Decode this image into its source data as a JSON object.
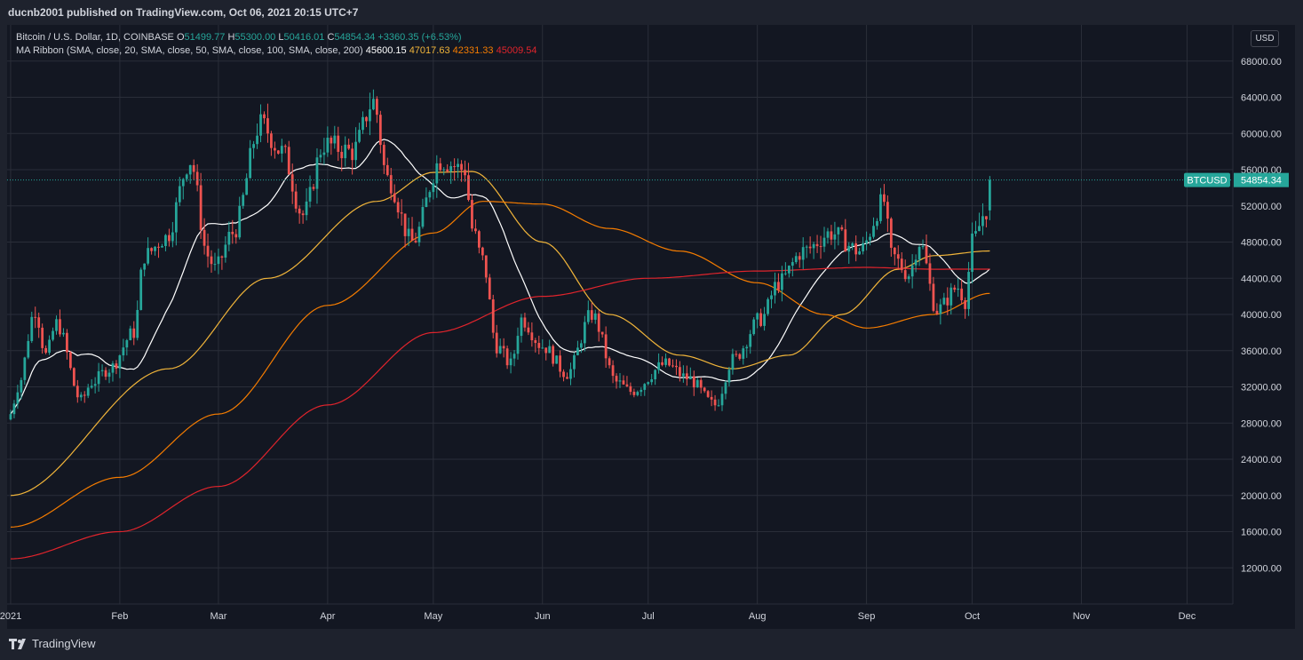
{
  "header": {
    "publisher": "ducnb2001 published on TradingView.com, Oct 06, 2021 20:15 UTC+7"
  },
  "legend": {
    "symbol": "Bitcoin / U.S. Dollar, 1D, COINBASE",
    "o_label": "O",
    "o_value": "51499.77",
    "h_label": "H",
    "h_value": "55300.00",
    "l_label": "L",
    "l_value": "50416.01",
    "c_label": "C",
    "c_value": "54854.34",
    "change": "+3360.35 (+6.53%)",
    "ma_label": "MA Ribbon (SMA, close, 20, SMA, close, 50, SMA, close, 100, SMA, close, 200)",
    "ma20": "45600.15",
    "ma50": "47017.63",
    "ma100": "42331.33",
    "ma200": "45009.54"
  },
  "currency": "USD",
  "price_tag": {
    "symbol": "BTCUSD",
    "value": "54854.34"
  },
  "footer": {
    "brand": "TradingView"
  },
  "colors": {
    "up": "#26a69a",
    "down": "#ef5350",
    "ma20": "#ffffff",
    "ma50": "#f0b43a",
    "ma100": "#f57c00",
    "ma200": "#e0242c",
    "grid": "#2a2e39",
    "background": "#131722"
  },
  "chart_data": {
    "type": "candlestick",
    "title": "Bitcoin / U.S. Dollar, 1D, COINBASE",
    "y_ticks": [
      12000,
      16000,
      20000,
      24000,
      28000,
      32000,
      36000,
      40000,
      44000,
      48000,
      52000,
      56000,
      60000,
      64000,
      68000
    ],
    "y_tick_labels": [
      "12000.00",
      "16000.00",
      "20000.00",
      "24000.00",
      "28000.00",
      "32000.00",
      "36000.00",
      "40000.00",
      "44000.00",
      "48000.00",
      "52000.00",
      "56000.00",
      "60000.00",
      "64000.00",
      "68000.00"
    ],
    "ylim": [
      8000,
      72000
    ],
    "x_ticks": [
      {
        "label": "2021",
        "date": "2021-01-01"
      },
      {
        "label": "Feb",
        "date": "2021-02-01"
      },
      {
        "label": "Mar",
        "date": "2021-03-01"
      },
      {
        "label": "Apr",
        "date": "2021-04-01"
      },
      {
        "label": "May",
        "date": "2021-05-01"
      },
      {
        "label": "Jun",
        "date": "2021-06-01"
      },
      {
        "label": "Jul",
        "date": "2021-07-01"
      },
      {
        "label": "Aug",
        "date": "2021-08-01"
      },
      {
        "label": "Sep",
        "date": "2021-09-01"
      },
      {
        "label": "Oct",
        "date": "2021-10-01"
      },
      {
        "label": "Nov",
        "date": "2021-11-01"
      },
      {
        "label": "Dec",
        "date": "2021-12-01"
      }
    ],
    "xlim": [
      "2020-12-31",
      "2021-12-14"
    ],
    "last_price": 54854.34,
    "close_path": [
      [
        "2021-01-01",
        29000
      ],
      [
        "2021-01-03",
        32000
      ],
      [
        "2021-01-08",
        40500
      ],
      [
        "2021-01-11",
        35500
      ],
      [
        "2021-01-14",
        39000
      ],
      [
        "2021-01-21",
        30500
      ],
      [
        "2021-01-24",
        32500
      ],
      [
        "2021-01-29",
        34000
      ],
      [
        "2021-02-05",
        38000
      ],
      [
        "2021-02-08",
        46500
      ],
      [
        "2021-02-14",
        48500
      ],
      [
        "2021-02-21",
        57000
      ],
      [
        "2021-02-26",
        46500
      ],
      [
        "2021-02-28",
        45000
      ],
      [
        "2021-03-05",
        49000
      ],
      [
        "2021-03-13",
        61000
      ],
      [
        "2021-03-19",
        58000
      ],
      [
        "2021-03-25",
        51000
      ],
      [
        "2021-03-31",
        58800
      ],
      [
        "2021-04-08",
        58000
      ],
      [
        "2021-04-14",
        63500
      ],
      [
        "2021-04-18",
        55000
      ],
      [
        "2021-04-25",
        48000
      ],
      [
        "2021-05-03",
        57000
      ],
      [
        "2021-05-10",
        56000
      ],
      [
        "2021-05-12",
        49500
      ],
      [
        "2021-05-15",
        46000
      ],
      [
        "2021-05-19",
        36500
      ],
      [
        "2021-05-23",
        34500
      ],
      [
        "2021-05-26",
        39500
      ],
      [
        "2021-06-01",
        36500
      ],
      [
        "2021-06-08",
        33500
      ],
      [
        "2021-06-15",
        40000
      ],
      [
        "2021-06-22",
        32500
      ],
      [
        "2021-06-26",
        31500
      ],
      [
        "2021-07-06",
        34500
      ],
      [
        "2021-07-12",
        33000
      ],
      [
        "2021-07-20",
        30000
      ],
      [
        "2021-07-25",
        35000
      ],
      [
        "2021-08-02",
        39500
      ],
      [
        "2021-08-07",
        43500
      ],
      [
        "2021-08-14",
        47000
      ],
      [
        "2021-08-22",
        49000
      ],
      [
        "2021-08-30",
        47000
      ],
      [
        "2021-09-06",
        52500
      ],
      [
        "2021-09-08",
        46500
      ],
      [
        "2021-09-13",
        44500
      ],
      [
        "2021-09-16",
        48000
      ],
      [
        "2021-09-21",
        40500
      ],
      [
        "2021-09-27",
        43000
      ],
      [
        "2021-09-29",
        41500
      ],
      [
        "2021-10-01",
        48000
      ],
      [
        "2021-10-05",
        51500
      ],
      [
        "2021-10-06",
        54854
      ]
    ],
    "series": [
      {
        "name": "MA 20",
        "period": 20,
        "last": 45600.15
      },
      {
        "name": "MA 50",
        "period": 50,
        "last": 47017.63
      },
      {
        "name": "MA 100",
        "period": 100,
        "last": 42331.33
      },
      {
        "name": "MA 200",
        "period": 200,
        "last": 45009.54
      }
    ],
    "ma_anchors": {
      "ma50": [
        [
          "2021-01-01",
          20000
        ],
        [
          "2021-02-15",
          34000
        ],
        [
          "2021-03-15",
          44000
        ],
        [
          "2021-04-15",
          52500
        ],
        [
          "2021-05-01",
          55700
        ],
        [
          "2021-05-12",
          55800
        ],
        [
          "2021-06-01",
          48000
        ],
        [
          "2021-06-20",
          40000
        ],
        [
          "2021-07-10",
          35500
        ],
        [
          "2021-07-25",
          34000
        ],
        [
          "2021-08-10",
          35500
        ],
        [
          "2021-08-25",
          40000
        ],
        [
          "2021-09-10",
          45000
        ],
        [
          "2021-09-20",
          46500
        ],
        [
          "2021-10-06",
          47017
        ]
      ],
      "ma100": [
        [
          "2021-01-01",
          16500
        ],
        [
          "2021-02-01",
          22000
        ],
        [
          "2021-03-01",
          29000
        ],
        [
          "2021-04-01",
          41000
        ],
        [
          "2021-05-01",
          49000
        ],
        [
          "2021-05-15",
          52500
        ],
        [
          "2021-06-01",
          52200
        ],
        [
          "2021-06-20",
          49500
        ],
        [
          "2021-07-10",
          47000
        ],
        [
          "2021-08-01",
          43500
        ],
        [
          "2021-08-20",
          40000
        ],
        [
          "2021-09-01",
          38500
        ],
        [
          "2021-09-20",
          40000
        ],
        [
          "2021-10-06",
          42331
        ]
      ],
      "ma200": [
        [
          "2021-01-01",
          13000
        ],
        [
          "2021-02-01",
          16000
        ],
        [
          "2021-03-01",
          21000
        ],
        [
          "2021-04-01",
          30000
        ],
        [
          "2021-05-01",
          38000
        ],
        [
          "2021-06-01",
          42000
        ],
        [
          "2021-07-01",
          44000
        ],
        [
          "2021-08-01",
          44800
        ],
        [
          "2021-09-01",
          45200
        ],
        [
          "2021-09-20",
          45000
        ],
        [
          "2021-10-06",
          45009
        ]
      ]
    }
  }
}
